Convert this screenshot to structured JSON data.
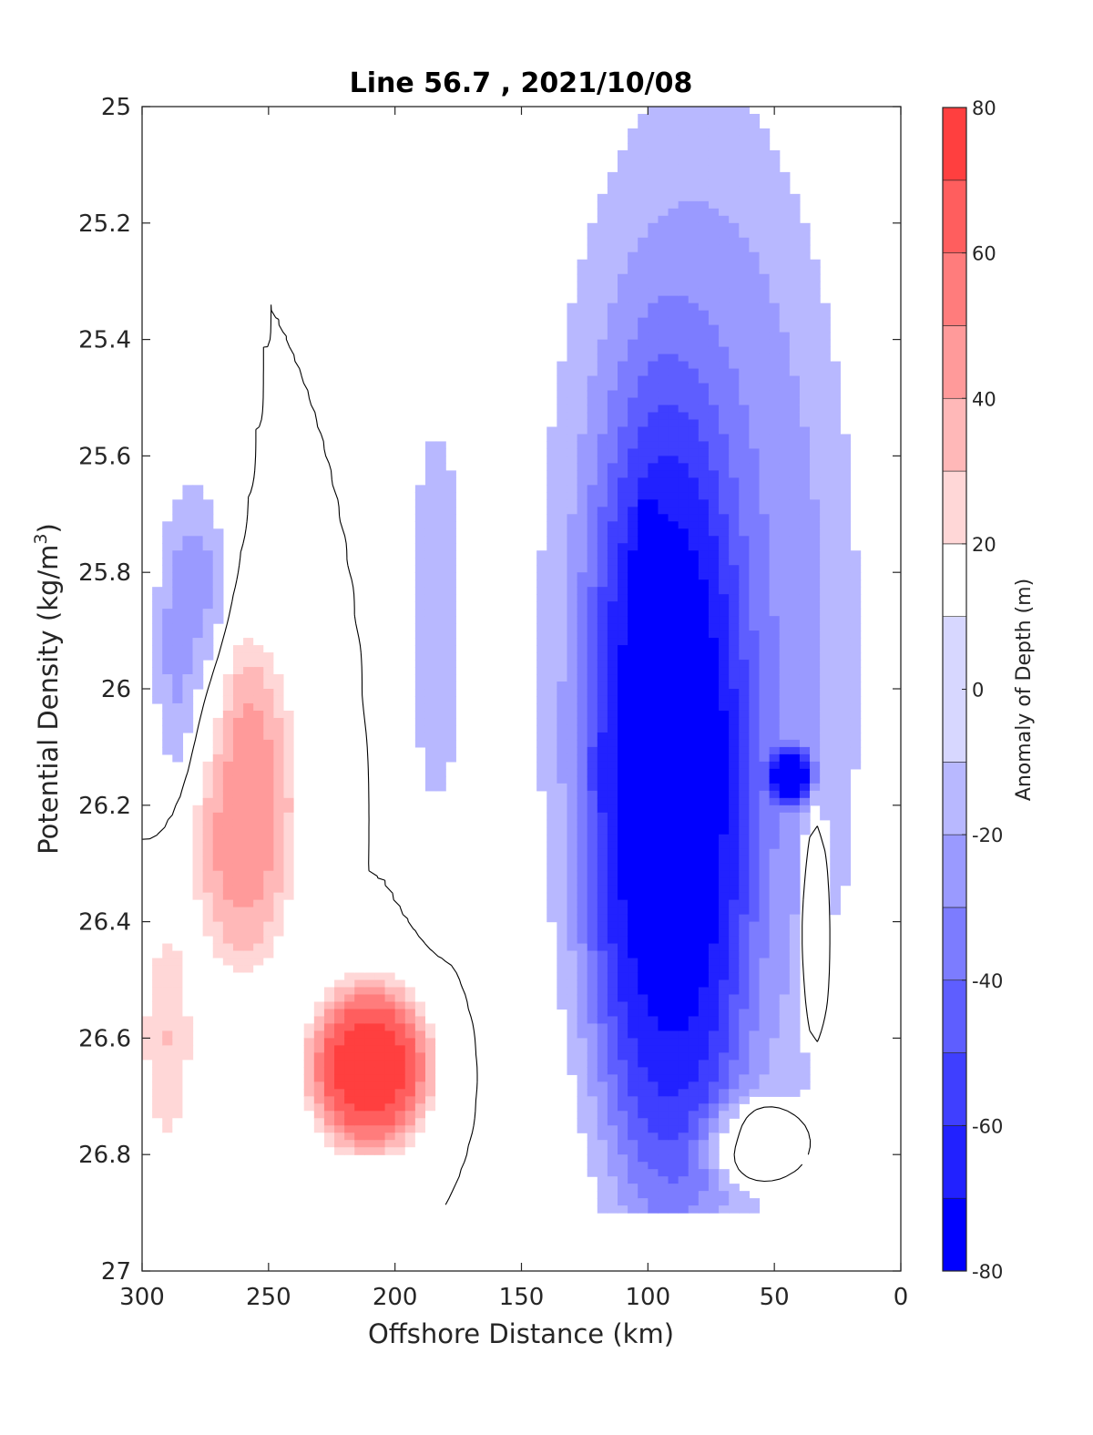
{
  "chart_data": {
    "type": "heatmap",
    "subtype": "filled-contour",
    "title": "Line 56.7 , 2021/10/08",
    "xlabel": "Offshore Distance (km)",
    "ylabel": "Potential Density (kg/m3)",
    "ylabel_parts": {
      "main": "Potential Density (kg/m",
      "sup": "3",
      "close": ")"
    },
    "xlim": [
      300,
      0
    ],
    "ylim": [
      25,
      27
    ],
    "x_ticks": [
      300,
      250,
      200,
      150,
      100,
      50,
      0
    ],
    "x_tick_labels": [
      "300",
      "250",
      "200",
      "150",
      "100",
      "50",
      "0"
    ],
    "y_ticks": [
      25,
      25.2,
      25.4,
      25.6,
      25.8,
      26,
      26.2,
      26.4,
      26.6,
      26.8,
      27
    ],
    "y_tick_labels": [
      "25",
      "25.2",
      "25.4",
      "25.6",
      "25.8",
      "26",
      "26.2",
      "26.4",
      "26.6",
      "26.8",
      "27"
    ],
    "colorbar": {
      "label": "Anomaly of Depth (m)",
      "range": [
        -80,
        80
      ],
      "ticks": [
        80,
        60,
        40,
        20,
        0,
        -20,
        -40,
        -60,
        -80
      ],
      "tick_labels": [
        "80",
        "60",
        "40",
        "20",
        "0",
        "-20",
        "-40",
        "-60",
        "-80"
      ],
      "levels": [
        -80,
        -70,
        -60,
        -50,
        -40,
        -30,
        -20,
        -10,
        10,
        20,
        30,
        40,
        50,
        60,
        70,
        80
      ],
      "colors": [
        "#0000ff",
        "#2121ff",
        "#3f3fff",
        "#5e5eff",
        "#7c7cff",
        "#9a9aff",
        "#b8b8ff",
        "#d7d7ff",
        "#ffffff",
        "#ffd7d7",
        "#ffb8b8",
        "#ff9a9a",
        "#ff7c7c",
        "#ff5e5e",
        "#ff3f3f",
        "#ff2121",
        "#ff0000"
      ]
    },
    "contour_line_level": 0,
    "anomaly_regions": [
      {
        "name": "core-negative-nearshore",
        "x_range": [
          20,
          140
        ],
        "y_range": [
          25.0,
          26.9
        ],
        "anomaly": -30
      },
      {
        "name": "deep-negative-core",
        "x_range": [
          60,
          125
        ],
        "y_range": [
          25.5,
          26.9
        ],
        "anomaly": -50
      },
      {
        "name": "min-blob-upper",
        "x_range": [
          95,
          105
        ],
        "y_range": [
          25.7,
          25.95
        ],
        "anomaly": -65
      },
      {
        "name": "min-blob-middle",
        "x_range": [
          72,
          86
        ],
        "y_range": [
          26.0,
          26.2
        ],
        "anomaly": -62
      },
      {
        "name": "min-blob-nearshore",
        "x_range": [
          35,
          52
        ],
        "y_range": [
          26.1,
          26.2
        ],
        "anomaly": -60
      },
      {
        "name": "offshore-negative-column",
        "x_range": [
          172,
          195
        ],
        "y_range": [
          25.5,
          26.25
        ],
        "anomaly": -15
      },
      {
        "name": "offshore-negative-250-290",
        "x_range": [
          265,
          295
        ],
        "y_range": [
          25.65,
          26.2
        ],
        "anomaly": -25
      },
      {
        "name": "positive-peak-deep",
        "x_range": [
          185,
          235
        ],
        "y_range": [
          26.5,
          26.8
        ],
        "anomaly": 75
      },
      {
        "name": "positive-lens-260",
        "x_range": [
          238,
          282
        ],
        "y_range": [
          25.9,
          26.5
        ],
        "anomaly": 45
      },
      {
        "name": "positive-offshore-edge",
        "x_range": [
          280,
          300
        ],
        "y_range": [
          26.4,
          26.8
        ],
        "anomaly": 30
      },
      {
        "name": "positive-nearshore-edge",
        "x_range": [
          28,
          40
        ],
        "y_range": [
          26.2,
          26.6
        ],
        "anomaly": 30
      },
      {
        "name": "positive-deep-nearshore",
        "x_range": [
          38,
          80
        ],
        "y_range": [
          26.7,
          26.85
        ],
        "anomaly": 25
      }
    ],
    "grid": false
  }
}
